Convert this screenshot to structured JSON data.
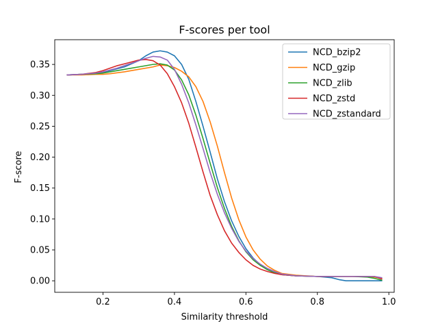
{
  "chart_data": {
    "type": "line",
    "title": "F-scores per tool",
    "xlabel": "Similarity threshold",
    "ylabel": "F-score",
    "xlim": [
      0.065,
      1.015
    ],
    "ylim": [
      -0.0186,
      0.39
    ],
    "xticks": [
      0.2,
      0.4,
      0.6,
      0.8,
      1.0
    ],
    "xtick_labels": [
      "0.2",
      "0.4",
      "0.6",
      "0.8",
      "1.0"
    ],
    "yticks": [
      0.0,
      0.05,
      0.1,
      0.15,
      0.2,
      0.25,
      0.3,
      0.35
    ],
    "ytick_labels": [
      "0.00",
      "0.05",
      "0.10",
      "0.15",
      "0.20",
      "0.25",
      "0.30",
      "0.35"
    ],
    "grid": false,
    "legend_position": "upper right",
    "series": [
      {
        "name": "NCD_bzip2",
        "color": "#1f77b4",
        "x": [
          0.1,
          0.14,
          0.18,
          0.2,
          0.22,
          0.26,
          0.3,
          0.32,
          0.34,
          0.36,
          0.38,
          0.4,
          0.42,
          0.44,
          0.46,
          0.48,
          0.5,
          0.52,
          0.54,
          0.56,
          0.58,
          0.6,
          0.62,
          0.64,
          0.66,
          0.68,
          0.7,
          0.74,
          0.8,
          0.84,
          0.86,
          0.88,
          0.92,
          0.96,
          0.98
        ],
        "y": [
          0.333,
          0.334,
          0.335,
          0.337,
          0.34,
          0.346,
          0.356,
          0.364,
          0.37,
          0.372,
          0.37,
          0.364,
          0.35,
          0.326,
          0.29,
          0.25,
          0.208,
          0.165,
          0.128,
          0.097,
          0.072,
          0.052,
          0.037,
          0.026,
          0.018,
          0.013,
          0.01,
          0.008,
          0.007,
          0.005,
          0.002,
          0.0,
          0.0,
          0.0,
          0.0
        ]
      },
      {
        "name": "NCD_gzip",
        "color": "#ff7f0e",
        "x": [
          0.1,
          0.14,
          0.18,
          0.2,
          0.22,
          0.26,
          0.3,
          0.34,
          0.36,
          0.38,
          0.4,
          0.42,
          0.44,
          0.46,
          0.48,
          0.5,
          0.52,
          0.54,
          0.56,
          0.58,
          0.6,
          0.62,
          0.64,
          0.66,
          0.68,
          0.7,
          0.74,
          0.8,
          0.86,
          0.9,
          0.94,
          0.96,
          0.98
        ],
        "y": [
          0.333,
          0.333,
          0.334,
          0.334,
          0.335,
          0.338,
          0.342,
          0.346,
          0.349,
          0.348,
          0.345,
          0.339,
          0.33,
          0.314,
          0.29,
          0.257,
          0.218,
          0.175,
          0.134,
          0.099,
          0.071,
          0.05,
          0.035,
          0.024,
          0.017,
          0.012,
          0.009,
          0.007,
          0.007,
          0.007,
          0.007,
          0.006,
          0.004
        ]
      },
      {
        "name": "NCD_zlib",
        "color": "#2ca02c",
        "x": [
          0.1,
          0.14,
          0.18,
          0.2,
          0.22,
          0.26,
          0.3,
          0.34,
          0.36,
          0.38,
          0.4,
          0.42,
          0.44,
          0.46,
          0.48,
          0.5,
          0.52,
          0.54,
          0.56,
          0.58,
          0.6,
          0.62,
          0.64,
          0.66,
          0.68,
          0.7,
          0.74,
          0.8,
          0.86,
          0.9,
          0.94,
          0.96,
          0.98
        ],
        "y": [
          0.333,
          0.334,
          0.335,
          0.336,
          0.338,
          0.342,
          0.346,
          0.35,
          0.351,
          0.349,
          0.341,
          0.325,
          0.301,
          0.268,
          0.23,
          0.19,
          0.151,
          0.117,
          0.088,
          0.065,
          0.047,
          0.034,
          0.025,
          0.018,
          0.013,
          0.01,
          0.008,
          0.007,
          0.007,
          0.007,
          0.006,
          0.004,
          0.001
        ]
      },
      {
        "name": "NCD_zstd",
        "color": "#d62728",
        "x": [
          0.1,
          0.14,
          0.18,
          0.2,
          0.22,
          0.24,
          0.26,
          0.28,
          0.3,
          0.32,
          0.34,
          0.36,
          0.38,
          0.4,
          0.42,
          0.44,
          0.46,
          0.48,
          0.5,
          0.52,
          0.54,
          0.56,
          0.58,
          0.6,
          0.62,
          0.64,
          0.66,
          0.68,
          0.7,
          0.74,
          0.8,
          0.86,
          0.9,
          0.94,
          0.96,
          0.98
        ],
        "y": [
          0.333,
          0.334,
          0.337,
          0.34,
          0.344,
          0.348,
          0.351,
          0.354,
          0.357,
          0.358,
          0.356,
          0.349,
          0.335,
          0.314,
          0.288,
          0.255,
          0.216,
          0.176,
          0.138,
          0.107,
          0.081,
          0.061,
          0.046,
          0.034,
          0.025,
          0.019,
          0.015,
          0.012,
          0.01,
          0.008,
          0.007,
          0.007,
          0.007,
          0.007,
          0.007,
          0.003
        ]
      },
      {
        "name": "NCD_zstandard",
        "color": "#9467bd",
        "x": [
          0.1,
          0.14,
          0.18,
          0.2,
          0.22,
          0.24,
          0.26,
          0.28,
          0.3,
          0.32,
          0.34,
          0.36,
          0.38,
          0.4,
          0.42,
          0.44,
          0.46,
          0.48,
          0.5,
          0.52,
          0.54,
          0.56,
          0.58,
          0.6,
          0.62,
          0.64,
          0.66,
          0.68,
          0.7,
          0.74,
          0.8,
          0.86,
          0.9,
          0.94,
          0.96,
          0.98
        ],
        "y": [
          0.333,
          0.334,
          0.336,
          0.338,
          0.341,
          0.344,
          0.348,
          0.352,
          0.356,
          0.36,
          0.363,
          0.362,
          0.357,
          0.342,
          0.318,
          0.288,
          0.252,
          0.214,
          0.175,
          0.14,
          0.11,
          0.085,
          0.064,
          0.048,
          0.036,
          0.027,
          0.02,
          0.015,
          0.011,
          0.008,
          0.007,
          0.007,
          0.007,
          0.007,
          0.007,
          0.005
        ]
      }
    ]
  }
}
